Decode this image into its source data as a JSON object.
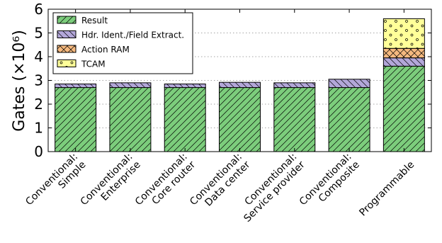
{
  "chart_data": {
    "type": "bar",
    "stacked": true,
    "categories": [
      [
        "Conventional:",
        "Simple"
      ],
      [
        "Conventional:",
        "Enterprise"
      ],
      [
        "Conventional:",
        "Core router"
      ],
      [
        "Conventional:",
        "Data center"
      ],
      [
        "Conventional:",
        "Service provider"
      ],
      [
        "Conventional:",
        "Composite"
      ],
      [
        "Programmable"
      ]
    ],
    "series": [
      {
        "name": "Result",
        "values": [
          2.7,
          2.7,
          2.7,
          2.7,
          2.7,
          2.7,
          3.6
        ],
        "color": "#7ccd7c",
        "pattern": "forward-diagonal"
      },
      {
        "name": "Hdr. Ident./Field Extract.",
        "values": [
          0.15,
          0.2,
          0.15,
          0.22,
          0.2,
          0.35,
          0.35
        ],
        "color": "#b3a7d9",
        "pattern": "back-diagonal"
      },
      {
        "name": "Action RAM",
        "values": [
          0,
          0,
          0,
          0,
          0,
          0,
          0.4
        ],
        "color": "#f5b97f",
        "pattern": "crosshatch"
      },
      {
        "name": "TCAM",
        "values": [
          0,
          0,
          0,
          0,
          0,
          0,
          1.25
        ],
        "color": "#ffff99",
        "pattern": "dots"
      }
    ],
    "ylabel": "Gates (×10⁶)",
    "ylim": [
      0,
      6
    ],
    "yticks": [
      0,
      1,
      2,
      3,
      4,
      5,
      6
    ],
    "grid": true,
    "legend": "top-left"
  }
}
